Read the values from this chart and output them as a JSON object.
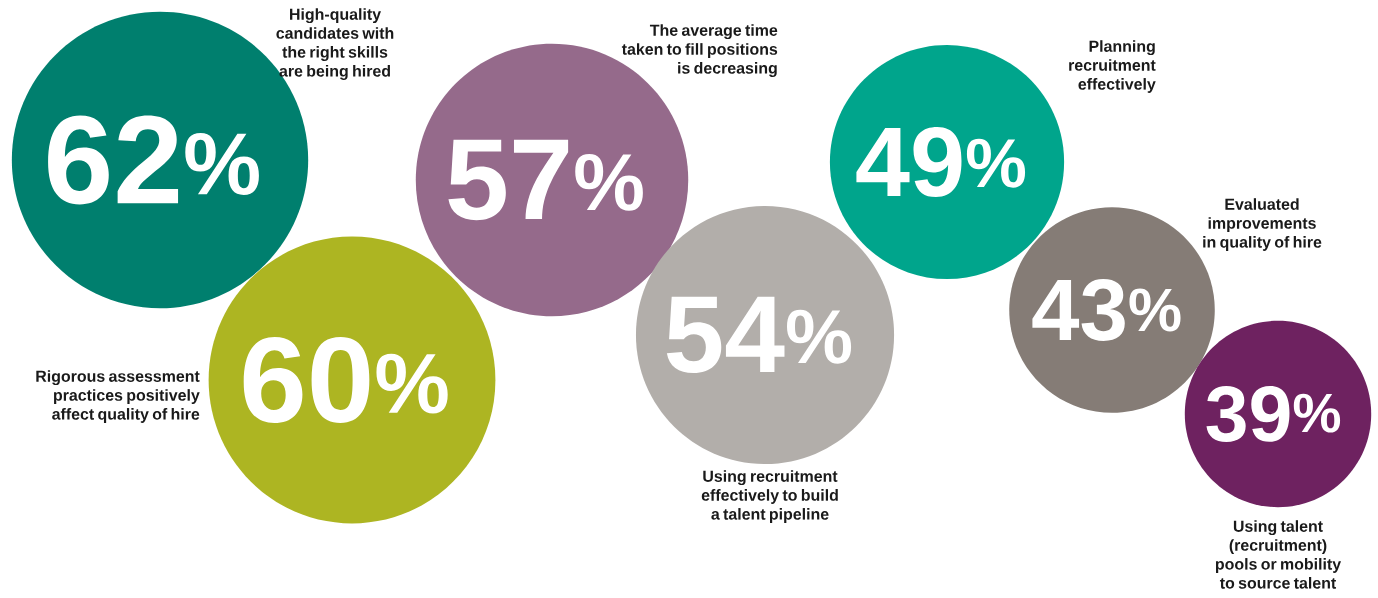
{
  "chart_data": {
    "type": "other",
    "categories": [
      "High-quality candidates with the right skills are being hired",
      "Rigorous assessment practices positively affect quality of hire",
      "The average time taken to fill positions is decreasing",
      "Using recruitment effectively to build a talent pipeline",
      "Planning recruitment effectively",
      "Evaluated improvements in quality of hire",
      "Using talent (recruitment) pools or mobility to source talent"
    ],
    "values": [
      62,
      60,
      57,
      54,
      49,
      43,
      39
    ],
    "value_labels": [
      "62$^{%}$",
      "60$^{%}$",
      "57$^{%}$",
      "54$^{%}$",
      "49$^{%}$",
      "43$^{%}$",
      "39$^{%}$"
    ],
    "colors": [
      "#007f6e",
      "#adb522",
      "#956a8b",
      "#b2aeaa",
      "#00a58c",
      "#857c76",
      "#6e2260"
    ]
  }
}
